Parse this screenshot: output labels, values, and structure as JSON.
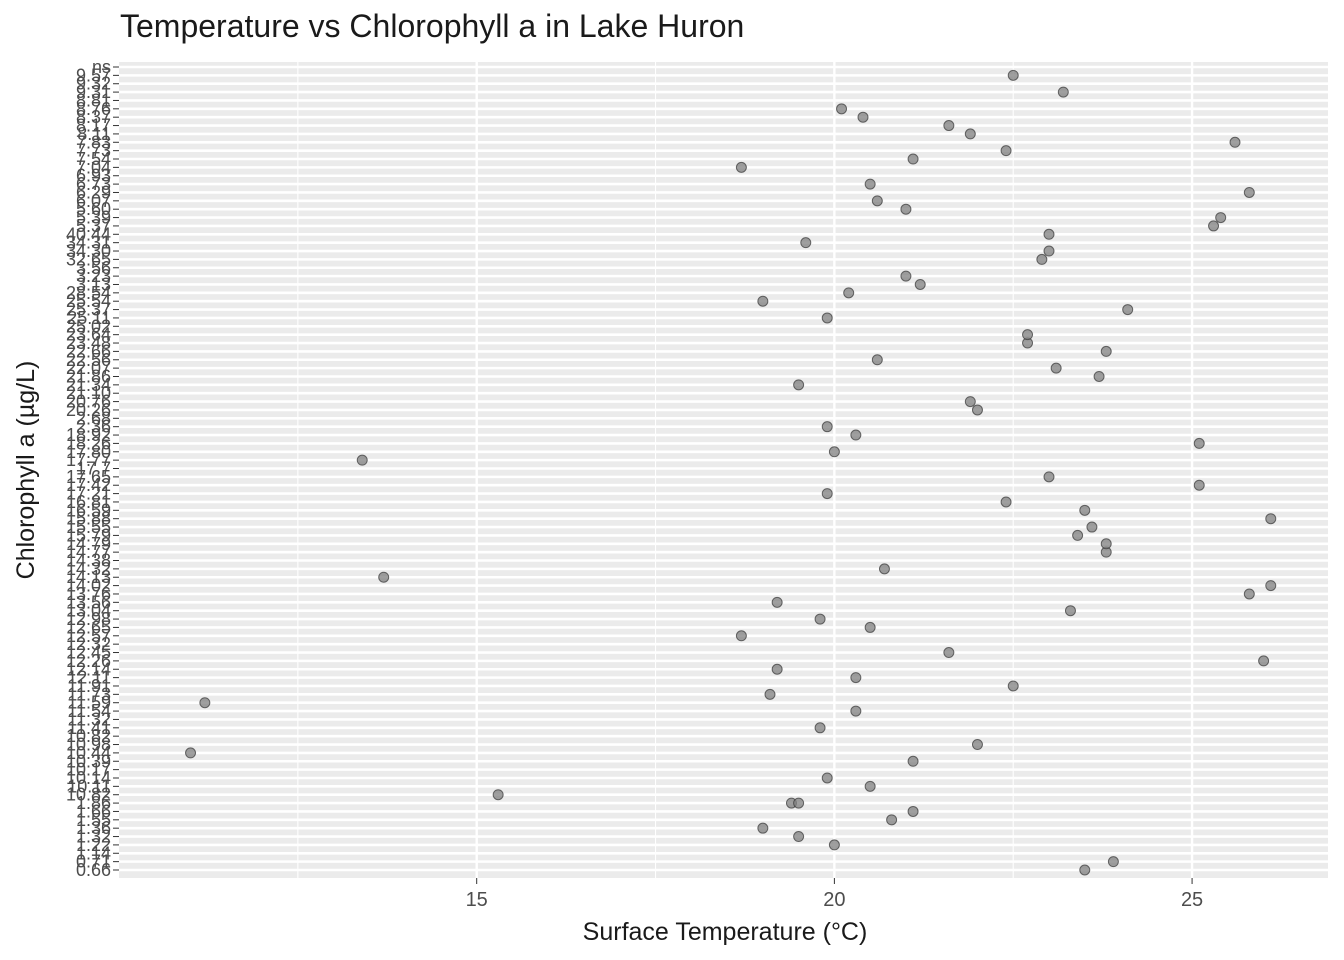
{
  "chart_data": {
    "type": "scatter",
    "title": "Temperature vs Chlorophyll a in Lake Huron",
    "xlabel": "Surface Temperature (°C)",
    "ylabel": "Chlorophyll a (µg/L)",
    "x_ticks": [
      15,
      20,
      25
    ],
    "xlim": [
      10,
      26.9
    ],
    "grid": true,
    "y_categories": [
      "0.66",
      "0.71",
      "1.14",
      "1.22",
      "1.32",
      "1.36",
      "1.55",
      "1.66",
      "1.86",
      "10.82",
      "10.11",
      "10.14",
      "10.17",
      "10.39",
      "10.44",
      "10.98",
      "10.82",
      "11.41",
      "11.32",
      "11.54",
      "11.59",
      "11.73",
      "11.91",
      "12.11",
      "12.14",
      "12.26",
      "12.45",
      "12.32",
      "12.57",
      "12.65",
      "12.98",
      "13.04",
      "13.56",
      "13.76",
      "14.02",
      "14.13",
      "14.32",
      "14.38",
      "14.77",
      "14.79",
      "15.79",
      "15.55",
      "15.88",
      "16.59",
      "16.81",
      "17.21",
      "17.42",
      "17.65",
      "17.7",
      "17.77",
      "17.80",
      "18.26",
      "18.92",
      "2.36",
      "2.68",
      "20.26",
      "20.76",
      "21.10",
      "21.34",
      "21.86",
      "22.07",
      "22.56",
      "22.66",
      "23.48",
      "23.64",
      "25.02",
      "25.11",
      "25.37",
      "25.54",
      "28.54",
      "3.13",
      "3.23",
      "3.56",
      "32.65",
      "34.30",
      "34.31",
      "40.44",
      "5.37",
      "5.39",
      "5.60",
      "6.07",
      "6.29",
      "6.73",
      "6.93",
      "7.04",
      "7.54",
      "7.73",
      "7.83",
      "8.11",
      "8.17",
      "8.37",
      "8.76",
      "8.81",
      "9.31",
      "9.32",
      "9.57",
      "ns"
    ],
    "points": [
      {
        "x": 23.5,
        "y": "0.66"
      },
      {
        "x": 23.9,
        "y": "0.71"
      },
      {
        "x": 20.0,
        "y": "1.22"
      },
      {
        "x": 19.5,
        "y": "1.32"
      },
      {
        "x": 19.0,
        "y": "1.36"
      },
      {
        "x": 20.8,
        "y": "1.55"
      },
      {
        "x": 21.1,
        "y": "1.66"
      },
      {
        "x": 19.4,
        "y": "1.86"
      },
      {
        "x": 19.5,
        "y": "1.86"
      },
      {
        "x": 15.3,
        "y": "10.82"
      },
      {
        "x": 20.5,
        "y": "10.11"
      },
      {
        "x": 19.9,
        "y": "10.14"
      },
      {
        "x": 21.1,
        "y": "10.39"
      },
      {
        "x": 11.0,
        "y": "10.44"
      },
      {
        "x": 22.0,
        "y": "10.98"
      },
      {
        "x": 19.8,
        "y": "11.41"
      },
      {
        "x": 20.3,
        "y": "11.54"
      },
      {
        "x": 11.2,
        "y": "11.59"
      },
      {
        "x": 19.1,
        "y": "11.73"
      },
      {
        "x": 22.5,
        "y": "11.91"
      },
      {
        "x": 20.3,
        "y": "12.11"
      },
      {
        "x": 19.2,
        "y": "12.14"
      },
      {
        "x": 26.0,
        "y": "12.26"
      },
      {
        "x": 21.6,
        "y": "12.45"
      },
      {
        "x": 18.7,
        "y": "12.57"
      },
      {
        "x": 20.5,
        "y": "12.65"
      },
      {
        "x": 19.8,
        "y": "12.98"
      },
      {
        "x": 23.3,
        "y": "13.04"
      },
      {
        "x": 19.2,
        "y": "13.56"
      },
      {
        "x": 25.8,
        "y": "13.76"
      },
      {
        "x": 26.1,
        "y": "14.02"
      },
      {
        "x": 13.7,
        "y": "14.13"
      },
      {
        "x": 20.7,
        "y": "14.32"
      },
      {
        "x": 23.8,
        "y": "14.77"
      },
      {
        "x": 23.8,
        "y": "14.79"
      },
      {
        "x": 23.4,
        "y": "15.79"
      },
      {
        "x": 23.6,
        "y": "15.55"
      },
      {
        "x": 26.1,
        "y": "15.88"
      },
      {
        "x": 23.5,
        "y": "16.59"
      },
      {
        "x": 22.4,
        "y": "16.81"
      },
      {
        "x": 19.9,
        "y": "17.21"
      },
      {
        "x": 25.1,
        "y": "17.42"
      },
      {
        "x": 23.0,
        "y": "17.65"
      },
      {
        "x": 13.4,
        "y": "17.77"
      },
      {
        "x": 20.0,
        "y": "17.80"
      },
      {
        "x": 25.1,
        "y": "18.26"
      },
      {
        "x": 20.3,
        "y": "18.92"
      },
      {
        "x": 19.9,
        "y": "2.36"
      },
      {
        "x": 22.0,
        "y": "20.26"
      },
      {
        "x": 21.9,
        "y": "20.76"
      },
      {
        "x": 19.5,
        "y": "21.34"
      },
      {
        "x": 23.7,
        "y": "21.86"
      },
      {
        "x": 23.1,
        "y": "22.07"
      },
      {
        "x": 20.6,
        "y": "22.56"
      },
      {
        "x": 23.8,
        "y": "22.66"
      },
      {
        "x": 22.7,
        "y": "23.48"
      },
      {
        "x": 22.7,
        "y": "23.64"
      },
      {
        "x": 19.9,
        "y": "25.11"
      },
      {
        "x": 24.1,
        "y": "25.37"
      },
      {
        "x": 19.0,
        "y": "25.54"
      },
      {
        "x": 20.2,
        "y": "28.54"
      },
      {
        "x": 21.2,
        "y": "3.13"
      },
      {
        "x": 21.0,
        "y": "3.23"
      },
      {
        "x": 22.9,
        "y": "32.65"
      },
      {
        "x": 23.0,
        "y": "34.30"
      },
      {
        "x": 19.6,
        "y": "34.31"
      },
      {
        "x": 23.0,
        "y": "40.44"
      },
      {
        "x": 25.3,
        "y": "5.37"
      },
      {
        "x": 25.4,
        "y": "5.39"
      },
      {
        "x": 21.0,
        "y": "5.60"
      },
      {
        "x": 20.6,
        "y": "6.07"
      },
      {
        "x": 25.8,
        "y": "6.29"
      },
      {
        "x": 20.5,
        "y": "6.73"
      },
      {
        "x": 18.7,
        "y": "7.04"
      },
      {
        "x": 21.1,
        "y": "7.54"
      },
      {
        "x": 22.4,
        "y": "7.73"
      },
      {
        "x": 25.6,
        "y": "7.83"
      },
      {
        "x": 21.9,
        "y": "8.11"
      },
      {
        "x": 21.6,
        "y": "8.17"
      },
      {
        "x": 20.4,
        "y": "8.37"
      },
      {
        "x": 20.1,
        "y": "8.76"
      },
      {
        "x": 23.2,
        "y": "9.31"
      },
      {
        "x": 22.5,
        "y": "9.57"
      }
    ]
  }
}
